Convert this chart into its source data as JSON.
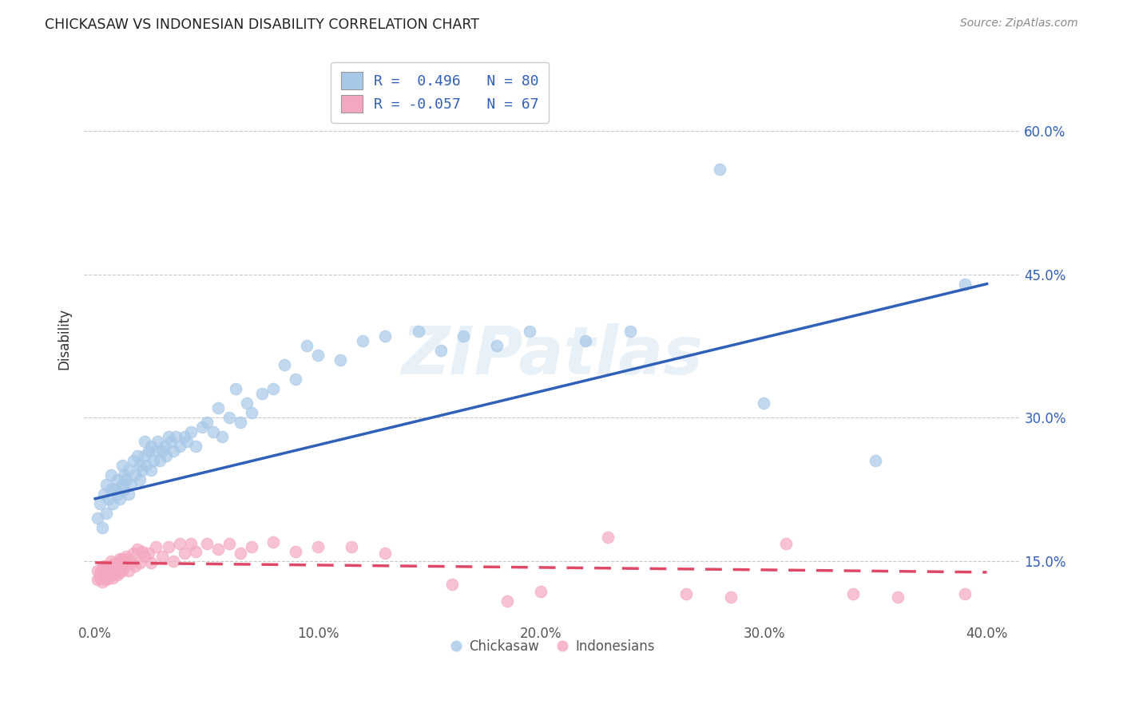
{
  "title": "CHICKASAW VS INDONESIAN DISABILITY CORRELATION CHART",
  "source": "Source: ZipAtlas.com",
  "ylabel": "Disability",
  "ytick_labels_right": [
    "15.0%",
    "30.0%",
    "45.0%",
    "60.0%"
  ],
  "ytick_values": [
    0.15,
    0.3,
    0.45,
    0.6
  ],
  "xtick_values": [
    0.0,
    0.1,
    0.2,
    0.3,
    0.4
  ],
  "xlim": [
    -0.005,
    0.415
  ],
  "ylim": [
    0.085,
    0.68
  ],
  "blue_R": 0.496,
  "blue_N": 80,
  "pink_R": -0.057,
  "pink_N": 67,
  "blue_color": "#a8c8e8",
  "pink_color": "#f4a8c0",
  "blue_line_color": "#3060b8",
  "pink_line_color": "#e04868",
  "legend_label_blue": "Chickasaw",
  "legend_label_pink": "Indonesians",
  "watermark": "ZIPatlas",
  "background_color": "#ffffff",
  "grid_color": "#c8c8c8",
  "blue_x": [
    0.001,
    0.002,
    0.003,
    0.004,
    0.005,
    0.005,
    0.006,
    0.007,
    0.007,
    0.008,
    0.009,
    0.01,
    0.01,
    0.011,
    0.012,
    0.012,
    0.013,
    0.013,
    0.014,
    0.015,
    0.015,
    0.016,
    0.017,
    0.018,
    0.019,
    0.02,
    0.02,
    0.021,
    0.022,
    0.022,
    0.023,
    0.024,
    0.025,
    0.025,
    0.026,
    0.027,
    0.028,
    0.029,
    0.03,
    0.031,
    0.032,
    0.033,
    0.034,
    0.035,
    0.036,
    0.038,
    0.04,
    0.041,
    0.043,
    0.045,
    0.048,
    0.05,
    0.053,
    0.055,
    0.057,
    0.06,
    0.063,
    0.065,
    0.068,
    0.07,
    0.075,
    0.08,
    0.085,
    0.09,
    0.095,
    0.1,
    0.11,
    0.12,
    0.13,
    0.145,
    0.155,
    0.165,
    0.18,
    0.195,
    0.22,
    0.24,
    0.28,
    0.3,
    0.35,
    0.39
  ],
  "blue_y": [
    0.195,
    0.21,
    0.185,
    0.22,
    0.2,
    0.23,
    0.215,
    0.225,
    0.24,
    0.21,
    0.225,
    0.22,
    0.235,
    0.215,
    0.23,
    0.25,
    0.225,
    0.24,
    0.235,
    0.22,
    0.245,
    0.23,
    0.255,
    0.24,
    0.26,
    0.235,
    0.25,
    0.245,
    0.26,
    0.275,
    0.25,
    0.265,
    0.245,
    0.27,
    0.255,
    0.265,
    0.275,
    0.255,
    0.265,
    0.27,
    0.26,
    0.28,
    0.275,
    0.265,
    0.28,
    0.27,
    0.28,
    0.275,
    0.285,
    0.27,
    0.29,
    0.295,
    0.285,
    0.31,
    0.28,
    0.3,
    0.33,
    0.295,
    0.315,
    0.305,
    0.325,
    0.33,
    0.355,
    0.34,
    0.375,
    0.365,
    0.36,
    0.38,
    0.385,
    0.39,
    0.37,
    0.385,
    0.375,
    0.39,
    0.38,
    0.39,
    0.56,
    0.315,
    0.255,
    0.44
  ],
  "pink_x": [
    0.001,
    0.001,
    0.002,
    0.002,
    0.003,
    0.003,
    0.004,
    0.004,
    0.005,
    0.005,
    0.005,
    0.006,
    0.006,
    0.007,
    0.007,
    0.007,
    0.008,
    0.008,
    0.009,
    0.009,
    0.01,
    0.01,
    0.011,
    0.011,
    0.012,
    0.012,
    0.013,
    0.014,
    0.015,
    0.015,
    0.016,
    0.017,
    0.018,
    0.019,
    0.02,
    0.021,
    0.022,
    0.024,
    0.025,
    0.027,
    0.03,
    0.033,
    0.035,
    0.038,
    0.04,
    0.043,
    0.045,
    0.05,
    0.055,
    0.06,
    0.065,
    0.07,
    0.08,
    0.09,
    0.1,
    0.115,
    0.13,
    0.16,
    0.185,
    0.2,
    0.23,
    0.265,
    0.285,
    0.31,
    0.34,
    0.36,
    0.39
  ],
  "pink_y": [
    0.13,
    0.14,
    0.132,
    0.138,
    0.128,
    0.142,
    0.135,
    0.145,
    0.13,
    0.138,
    0.145,
    0.132,
    0.142,
    0.135,
    0.145,
    0.15,
    0.132,
    0.142,
    0.138,
    0.148,
    0.135,
    0.148,
    0.138,
    0.152,
    0.14,
    0.152,
    0.145,
    0.155,
    0.14,
    0.152,
    0.148,
    0.158,
    0.145,
    0.162,
    0.148,
    0.16,
    0.155,
    0.158,
    0.148,
    0.165,
    0.155,
    0.165,
    0.15,
    0.168,
    0.158,
    0.168,
    0.16,
    0.168,
    0.162,
    0.168,
    0.158,
    0.165,
    0.17,
    0.16,
    0.165,
    0.165,
    0.158,
    0.125,
    0.108,
    0.118,
    0.175,
    0.115,
    0.112,
    0.168,
    0.115,
    0.112,
    0.115
  ]
}
